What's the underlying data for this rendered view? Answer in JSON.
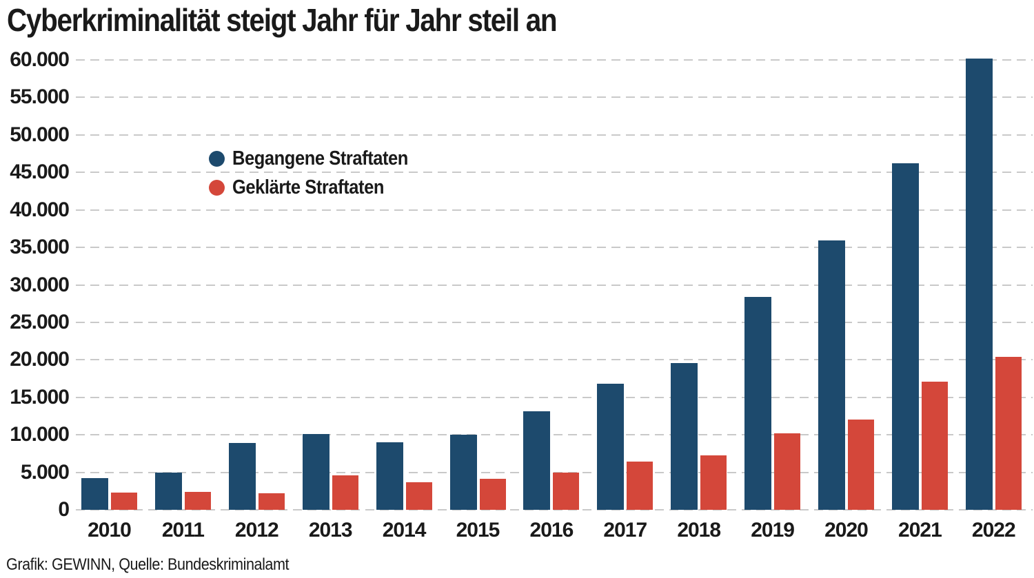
{
  "title": "Cyberkriminalität steigt Jahr für Jahr steil an",
  "footer": "Grafik: GEWINN, Quelle: Bundeskriminalamt",
  "colors": {
    "series_begangene": "#1d4a6d",
    "series_geklaerte": "#d4473a",
    "gridline": "#c9c9c9",
    "text": "#1a1a1a",
    "background": "#ffffff"
  },
  "chart_data": {
    "type": "bar",
    "title": "Cyberkriminalität steigt Jahr für Jahr steil an",
    "xlabel": "",
    "ylabel": "",
    "categories": [
      "2010",
      "2011",
      "2012",
      "2013",
      "2014",
      "2015",
      "2016",
      "2017",
      "2018",
      "2019",
      "2020",
      "2021",
      "2022"
    ],
    "series": [
      {
        "name": "Begangene Straftaten",
        "color": "#1d4a6d",
        "values": [
          4200,
          4950,
          8900,
          10100,
          9000,
          10000,
          13100,
          16800,
          19600,
          28400,
          35900,
          46200,
          60200
        ]
      },
      {
        "name": "Geklärte Straftaten",
        "color": "#d4473a",
        "values": [
          2300,
          2400,
          2200,
          4550,
          3700,
          4100,
          5000,
          6400,
          7250,
          10200,
          12000,
          17100,
          20400
        ]
      }
    ],
    "ylim": [
      0,
      60000
    ],
    "ytick_step": 5000,
    "ytick_labels": [
      "0",
      "5.000",
      "10.000",
      "15.000",
      "20.000",
      "25.000",
      "30.000",
      "35.000",
      "40.000",
      "45.000",
      "50.000",
      "55.000",
      "60.000"
    ],
    "grid": "horizontal-dashed",
    "legend_position": "inside-upper-left"
  }
}
